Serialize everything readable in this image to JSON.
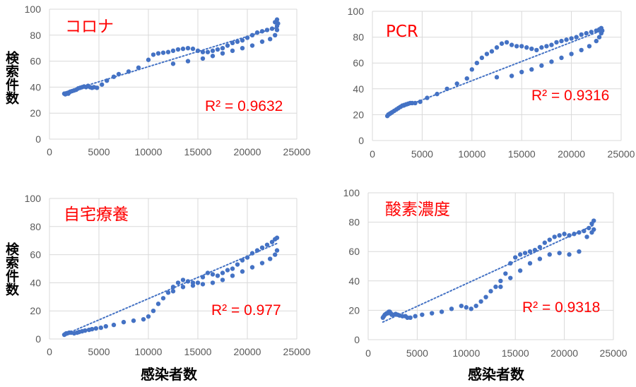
{
  "axis_labels": {
    "y": "検索件数",
    "x": "感染者数"
  },
  "chart_data": [
    {
      "type": "scatter",
      "title": "コロナ",
      "annotation": {
        "text": "R² = 0.9632"
      },
      "trendline": {
        "style": "dotted",
        "from": [
          1500,
          36
        ],
        "to": [
          23000,
          86
        ]
      },
      "marker_color": "#4472c4",
      "trend_color": "#4472c4",
      "grid": true,
      "xlim": [
        0,
        25000
      ],
      "ylim": [
        0,
        100
      ],
      "xticks": [
        0,
        5000,
        10000,
        15000,
        20000,
        25000
      ],
      "yticks": [
        0,
        20,
        40,
        60,
        80,
        100
      ],
      "points": [
        [
          1500,
          35
        ],
        [
          1600,
          34.5
        ],
        [
          1700,
          35
        ],
        [
          1800,
          35.5
        ],
        [
          1900,
          35
        ],
        [
          2000,
          36
        ],
        [
          2100,
          36.5
        ],
        [
          2300,
          37
        ],
        [
          2500,
          37.5
        ],
        [
          2700,
          38
        ],
        [
          2900,
          39
        ],
        [
          3100,
          39.5
        ],
        [
          3300,
          40
        ],
        [
          3500,
          40.5
        ],
        [
          3700,
          40
        ],
        [
          3900,
          41
        ],
        [
          4100,
          40
        ],
        [
          4300,
          39.5
        ],
        [
          4500,
          40
        ],
        [
          4800,
          39.5
        ],
        [
          5300,
          42
        ],
        [
          5800,
          45
        ],
        [
          6500,
          48
        ],
        [
          7000,
          50
        ],
        [
          8000,
          52
        ],
        [
          9000,
          55
        ],
        [
          10000,
          61
        ],
        [
          10500,
          65
        ],
        [
          11000,
          66
        ],
        [
          11500,
          66.5
        ],
        [
          12000,
          67
        ],
        [
          12500,
          68
        ],
        [
          13000,
          69
        ],
        [
          13500,
          69.5
        ],
        [
          14000,
          70
        ],
        [
          14500,
          69.5
        ],
        [
          15000,
          68
        ],
        [
          15500,
          67
        ],
        [
          16000,
          67
        ],
        [
          16500,
          68
        ],
        [
          17000,
          69
        ],
        [
          17500,
          70
        ],
        [
          18000,
          72
        ],
        [
          18500,
          74
        ],
        [
          19000,
          75
        ],
        [
          19500,
          76
        ],
        [
          20000,
          78
        ],
        [
          20500,
          80
        ],
        [
          21000,
          82
        ],
        [
          21500,
          83
        ],
        [
          22000,
          84
        ],
        [
          22500,
          85
        ],
        [
          22800,
          90
        ],
        [
          23000,
          92
        ],
        [
          23100,
          89
        ],
        [
          23000,
          87
        ],
        [
          12500,
          58
        ],
        [
          14000,
          60
        ],
        [
          15500,
          62
        ],
        [
          16500,
          64
        ],
        [
          17500,
          66
        ],
        [
          18500,
          68
        ],
        [
          19500,
          70
        ],
        [
          20500,
          72
        ],
        [
          21500,
          75
        ],
        [
          22300,
          77
        ],
        [
          22800,
          80
        ],
        [
          23000,
          84
        ]
      ]
    },
    {
      "type": "scatter",
      "title": "PCR",
      "annotation": {
        "text": "R² = 0.9316"
      },
      "trendline": {
        "style": "dotted",
        "from": [
          1500,
          21
        ],
        "to": [
          23000,
          85
        ]
      },
      "marker_color": "#4472c4",
      "trend_color": "#4472c4",
      "grid": true,
      "xlim": [
        0,
        25000
      ],
      "ylim": [
        0,
        100
      ],
      "xticks": [
        0,
        5000,
        10000,
        15000,
        20000,
        25000
      ],
      "yticks": [
        0,
        20,
        40,
        60,
        80,
        100
      ],
      "points": [
        [
          1500,
          19
        ],
        [
          1600,
          20
        ],
        [
          1700,
          20.5
        ],
        [
          1800,
          21
        ],
        [
          1900,
          21.5
        ],
        [
          2000,
          22
        ],
        [
          2200,
          23
        ],
        [
          2400,
          24
        ],
        [
          2600,
          25
        ],
        [
          2800,
          26
        ],
        [
          3000,
          27
        ],
        [
          3200,
          27.5
        ],
        [
          3400,
          28
        ],
        [
          3600,
          28.5
        ],
        [
          3800,
          29
        ],
        [
          4000,
          29
        ],
        [
          4300,
          29
        ],
        [
          4800,
          30
        ],
        [
          5500,
          33
        ],
        [
          6500,
          36
        ],
        [
          7500,
          40
        ],
        [
          8500,
          44
        ],
        [
          9500,
          48
        ],
        [
          10000,
          55
        ],
        [
          10500,
          60
        ],
        [
          11000,
          64
        ],
        [
          11500,
          67
        ],
        [
          12000,
          69
        ],
        [
          12500,
          72
        ],
        [
          13000,
          75
        ],
        [
          13500,
          76
        ],
        [
          14000,
          74
        ],
        [
          14500,
          73
        ],
        [
          15000,
          73
        ],
        [
          15500,
          72
        ],
        [
          16000,
          71
        ],
        [
          16500,
          70
        ],
        [
          17000,
          72
        ],
        [
          17500,
          73
        ],
        [
          18000,
          74
        ],
        [
          18500,
          76
        ],
        [
          19000,
          77
        ],
        [
          19500,
          78
        ],
        [
          20000,
          79
        ],
        [
          20500,
          80
        ],
        [
          21000,
          82
        ],
        [
          21500,
          83
        ],
        [
          22000,
          84
        ],
        [
          22500,
          85
        ],
        [
          22800,
          86
        ],
        [
          23000,
          87
        ],
        [
          23100,
          85
        ],
        [
          23000,
          83
        ],
        [
          12500,
          49
        ],
        [
          14000,
          50
        ],
        [
          15000,
          53
        ],
        [
          16000,
          55
        ],
        [
          17000,
          58
        ],
        [
          18000,
          61
        ],
        [
          19000,
          64
        ],
        [
          20000,
          67
        ],
        [
          21000,
          70
        ],
        [
          21800,
          73
        ],
        [
          22500,
          77
        ],
        [
          22800,
          80
        ]
      ]
    },
    {
      "type": "scatter",
      "title": "自宅療養",
      "annotation": {
        "text": "R² = 0.977"
      },
      "trendline": {
        "style": "dotted",
        "from": [
          1500,
          3
        ],
        "to": [
          23000,
          68
        ]
      },
      "marker_color": "#4472c4",
      "trend_color": "#4472c4",
      "grid": true,
      "xlim": [
        0,
        25000
      ],
      "ylim": [
        0,
        100
      ],
      "xticks": [
        0,
        5000,
        10000,
        15000,
        20000,
        25000
      ],
      "yticks": [
        0,
        20,
        40,
        60,
        80,
        100
      ],
      "points": [
        [
          1500,
          3
        ],
        [
          1600,
          3.5
        ],
        [
          1700,
          4
        ],
        [
          1800,
          4
        ],
        [
          2000,
          4.5
        ],
        [
          2200,
          4.5
        ],
        [
          2500,
          4
        ],
        [
          2800,
          4.5
        ],
        [
          3000,
          5
        ],
        [
          3300,
          5.5
        ],
        [
          3600,
          6
        ],
        [
          4000,
          6.5
        ],
        [
          4300,
          7
        ],
        [
          4700,
          7.5
        ],
        [
          5200,
          8
        ],
        [
          5700,
          9
        ],
        [
          6500,
          10
        ],
        [
          7500,
          12
        ],
        [
          8500,
          13
        ],
        [
          9500,
          14
        ],
        [
          10000,
          16
        ],
        [
          10500,
          20
        ],
        [
          11000,
          25
        ],
        [
          11500,
          29
        ],
        [
          12000,
          33
        ],
        [
          12500,
          37
        ],
        [
          13000,
          40
        ],
        [
          13500,
          42
        ],
        [
          14000,
          41
        ],
        [
          14500,
          40
        ],
        [
          15000,
          40
        ],
        [
          15500,
          44
        ],
        [
          16000,
          47
        ],
        [
          16500,
          46
        ],
        [
          17000,
          45
        ],
        [
          17500,
          47
        ],
        [
          18000,
          49
        ],
        [
          18500,
          50
        ],
        [
          19000,
          53
        ],
        [
          19500,
          56
        ],
        [
          20000,
          58
        ],
        [
          20500,
          61
        ],
        [
          21000,
          63
        ],
        [
          21500,
          65
        ],
        [
          22000,
          67
        ],
        [
          22500,
          69
        ],
        [
          22800,
          71
        ],
        [
          23000,
          72
        ],
        [
          12500,
          34
        ],
        [
          13500,
          37
        ],
        [
          14500,
          38
        ],
        [
          15500,
          39
        ],
        [
          16500,
          40
        ],
        [
          17500,
          42
        ],
        [
          18500,
          45
        ],
        [
          19500,
          48
        ],
        [
          20500,
          51
        ],
        [
          21500,
          54
        ],
        [
          22300,
          57
        ],
        [
          22800,
          60
        ],
        [
          23000,
          63
        ]
      ]
    },
    {
      "type": "scatter",
      "title": "酸素濃度",
      "annotation": {
        "text": "R² = 0.9318"
      },
      "trendline": {
        "style": "dotted",
        "from": [
          1500,
          12
        ],
        "to": [
          23000,
          78
        ]
      },
      "marker_color": "#4472c4",
      "trend_color": "#4472c4",
      "grid": true,
      "xlim": [
        0,
        25000
      ],
      "ylim": [
        0,
        100
      ],
      "xticks": [
        0,
        5000,
        10000,
        15000,
        20000,
        25000
      ],
      "yticks": [
        0,
        20,
        40,
        60,
        80,
        100
      ],
      "points": [
        [
          1500,
          15
        ],
        [
          1600,
          16
        ],
        [
          1700,
          17
        ],
        [
          1800,
          17.5
        ],
        [
          1900,
          18
        ],
        [
          2000,
          18
        ],
        [
          2100,
          19
        ],
        [
          2200,
          19
        ],
        [
          2300,
          18
        ],
        [
          2400,
          17
        ],
        [
          2600,
          17
        ],
        [
          2800,
          17.5
        ],
        [
          3000,
          17
        ],
        [
          3200,
          16.5
        ],
        [
          3500,
          16
        ],
        [
          3800,
          16
        ],
        [
          4000,
          15
        ],
        [
          4300,
          15
        ],
        [
          4800,
          16
        ],
        [
          5500,
          17
        ],
        [
          6500,
          18
        ],
        [
          7500,
          19
        ],
        [
          8500,
          21
        ],
        [
          9500,
          23
        ],
        [
          10000,
          22
        ],
        [
          10500,
          21
        ],
        [
          11000,
          23
        ],
        [
          11500,
          26
        ],
        [
          12000,
          29
        ],
        [
          12500,
          33
        ],
        [
          13000,
          36
        ],
        [
          13500,
          40
        ],
        [
          14000,
          45
        ],
        [
          14500,
          52
        ],
        [
          15000,
          56
        ],
        [
          15500,
          58
        ],
        [
          16000,
          59
        ],
        [
          16500,
          60
        ],
        [
          17000,
          61
        ],
        [
          17500,
          63
        ],
        [
          18000,
          66
        ],
        [
          18500,
          68
        ],
        [
          19000,
          70
        ],
        [
          19500,
          71
        ],
        [
          20000,
          72
        ],
        [
          20500,
          71
        ],
        [
          21000,
          72
        ],
        [
          21500,
          73
        ],
        [
          22000,
          74
        ],
        [
          22500,
          76
        ],
        [
          22800,
          79
        ],
        [
          23000,
          81
        ],
        [
          13500,
          36
        ],
        [
          14500,
          42
        ],
        [
          15500,
          47
        ],
        [
          16500,
          52
        ],
        [
          17500,
          55
        ],
        [
          18500,
          58
        ],
        [
          19500,
          59
        ],
        [
          20500,
          58
        ],
        [
          21500,
          60
        ],
        [
          22300,
          70
        ],
        [
          22800,
          73
        ],
        [
          23000,
          75
        ]
      ]
    }
  ]
}
